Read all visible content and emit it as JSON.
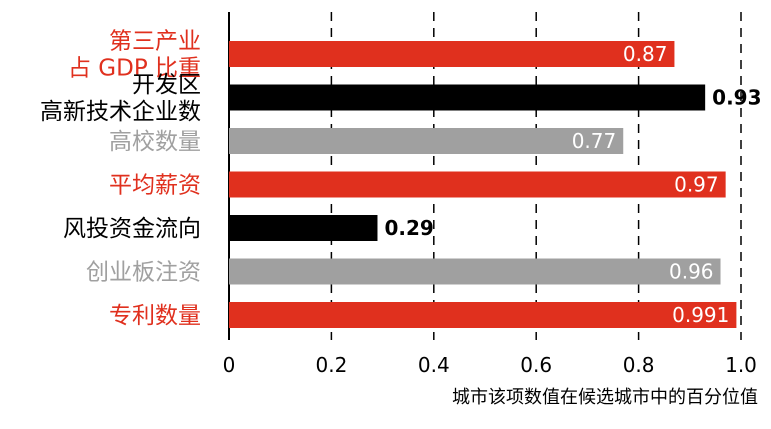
{
  "chart_data": {
    "type": "bar",
    "orientation": "horizontal",
    "categories": [
      [
        "第三产业",
        "占 GDP 比重"
      ],
      [
        "开发区",
        "高新技术企业数"
      ],
      [
        "高校数量"
      ],
      [
        "平均薪资"
      ],
      [
        "风投资金流向"
      ],
      [
        "创业板注资"
      ],
      [
        "专利数量"
      ]
    ],
    "values": [
      0.87,
      0.93,
      0.77,
      0.97,
      0.29,
      0.96,
      0.991
    ],
    "value_labels": [
      "0.87",
      "0.93",
      "0.77",
      "0.97",
      "0.29",
      "0.96",
      "0.991"
    ],
    "bar_colors": [
      "#e0301e",
      "#000000",
      "#a0a0a0",
      "#e0301e",
      "#000000",
      "#a0a0a0",
      "#e0301e"
    ],
    "label_colors": [
      "#e0301e",
      "#000000",
      "#a0a0a0",
      "#e0301e",
      "#000000",
      "#a0a0a0",
      "#e0301e"
    ],
    "value_label_inside": [
      true,
      false,
      true,
      true,
      false,
      true,
      true
    ],
    "xlim": [
      0,
      1.0
    ],
    "xticks": [
      0,
      0.2,
      0.4,
      0.6,
      0.8,
      1.0
    ],
    "xtick_labels": [
      "0",
      "0.2",
      "0.4",
      "0.6",
      "0.8",
      "1.0"
    ],
    "xlabel": "城市该项数值在候选城市中的百分位值",
    "grid": "vertical-dashed"
  }
}
